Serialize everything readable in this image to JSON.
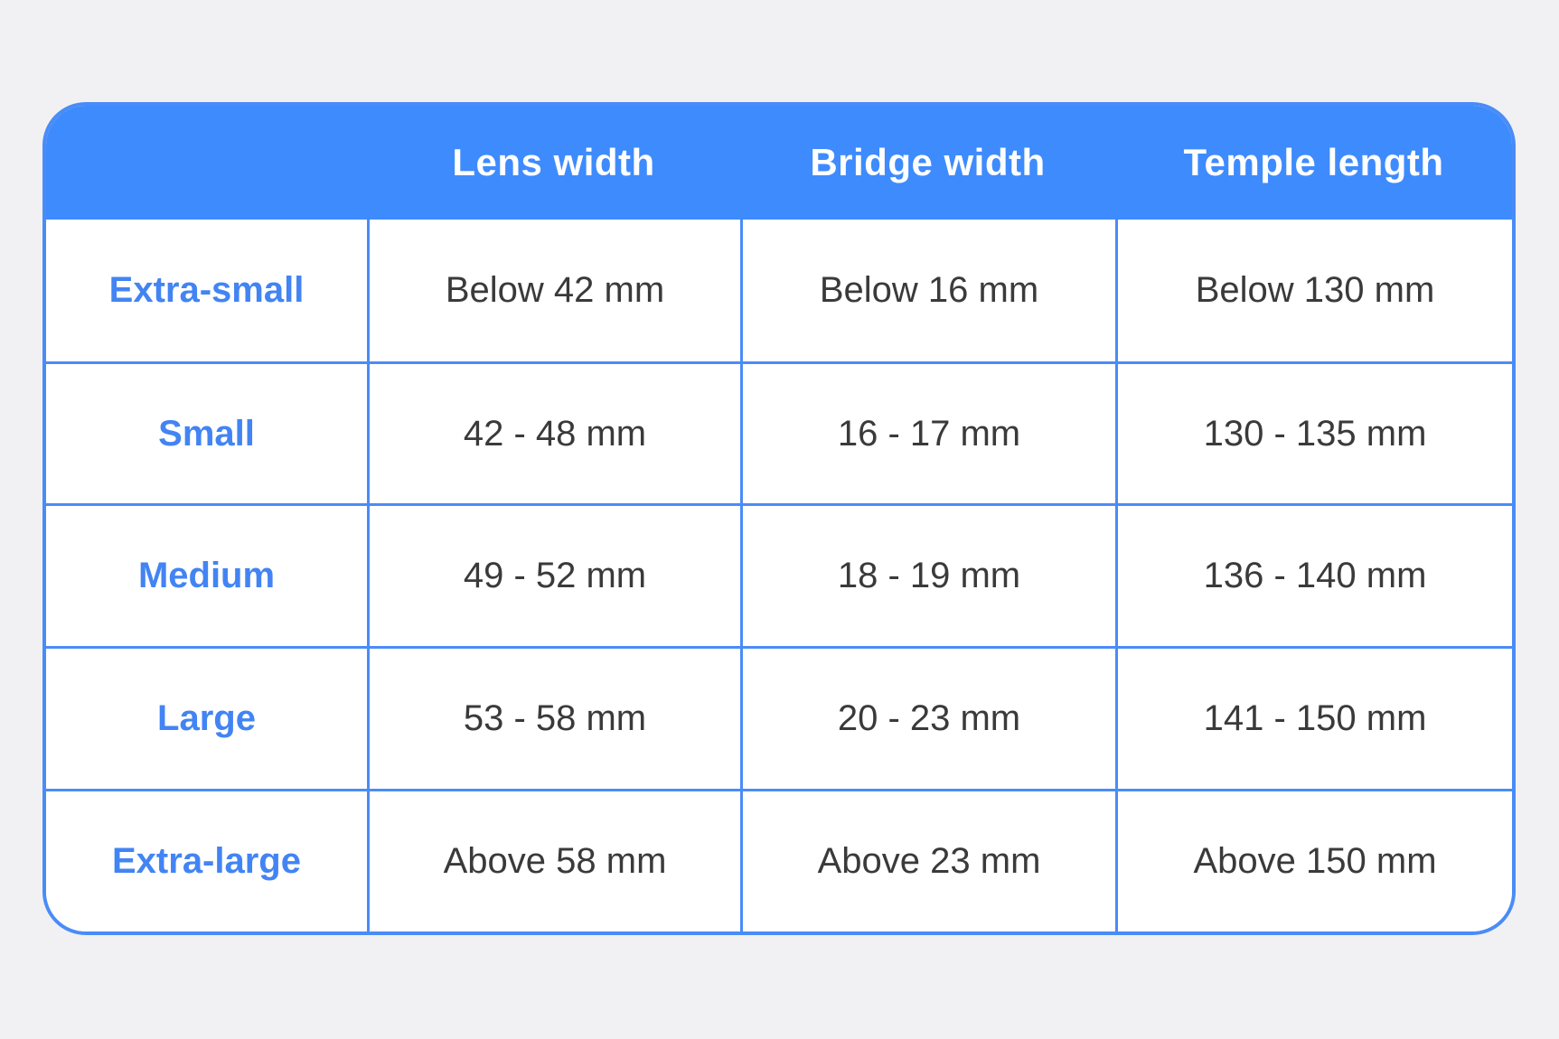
{
  "colors": {
    "header_bg": "#3e8bfe",
    "border": "#4a8cf7",
    "label_text": "#4284f3",
    "value_text": "#3a3a3a",
    "header_text": "#ffffff",
    "cell_bg": "#ffffff",
    "page_bg": "#f1f1f3"
  },
  "table": {
    "columns": [
      "Lens width",
      "Bridge width",
      "Temple length"
    ],
    "rows": [
      {
        "label": "Extra-small",
        "cells": [
          "Below 42 mm",
          "Below 16 mm",
          "Below 130 mm"
        ]
      },
      {
        "label": "Small",
        "cells": [
          "42 - 48 mm",
          "16 - 17 mm",
          "130 - 135 mm"
        ]
      },
      {
        "label": "Medium",
        "cells": [
          "49 - 52 mm",
          "18 - 19 mm",
          "136 - 140 mm"
        ]
      },
      {
        "label": "Large",
        "cells": [
          "53 - 58 mm",
          "20 - 23 mm",
          "141 - 150 mm"
        ]
      },
      {
        "label": "Extra-large",
        "cells": [
          "Above 58 mm",
          "Above 23 mm",
          "Above 150 mm"
        ]
      }
    ]
  }
}
